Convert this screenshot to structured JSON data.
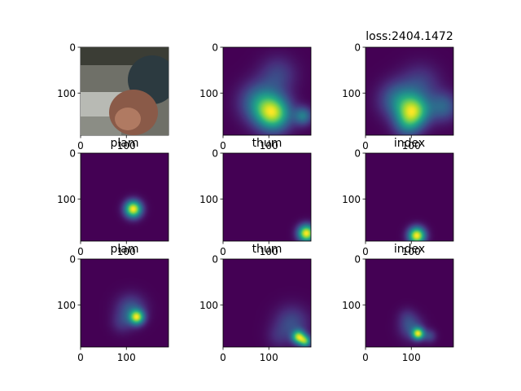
{
  "chart_data": {
    "type": "heatmap",
    "figure_title": "loss:2404.1472",
    "colormap": "viridis",
    "axis_ticks": [
      "0",
      "100"
    ],
    "x_range": [
      0,
      192
    ],
    "y_range": [
      0,
      192
    ],
    "panels": [
      {
        "id": "input-image",
        "title": "",
        "kind": "photo",
        "content": "hand photo"
      },
      {
        "id": "heatmap-total-1",
        "title": "",
        "kind": "heatmap",
        "blobs": [
          {
            "x": 110,
            "y": 145,
            "s": 26,
            "a": 1.0
          },
          {
            "x": 80,
            "y": 120,
            "s": 30,
            "a": 0.5
          },
          {
            "x": 175,
            "y": 150,
            "s": 14,
            "a": 0.5
          },
          {
            "x": 120,
            "y": 60,
            "s": 28,
            "a": 0.25
          }
        ]
      },
      {
        "id": "heatmap-total-2",
        "title": "",
        "kind": "heatmap",
        "blobs": [
          {
            "x": 105,
            "y": 140,
            "s": 24,
            "a": 1.0
          },
          {
            "x": 70,
            "y": 115,
            "s": 28,
            "a": 0.45
          },
          {
            "x": 170,
            "y": 130,
            "s": 22,
            "a": 0.4
          },
          {
            "x": 120,
            "y": 80,
            "s": 30,
            "a": 0.25
          },
          {
            "x": 90,
            "y": 170,
            "s": 20,
            "a": 0.35
          }
        ]
      },
      {
        "id": "heatmap-plam-1",
        "title": "plam",
        "kind": "heatmap",
        "blobs": [
          {
            "x": 115,
            "y": 122,
            "s": 13,
            "a": 1.0
          }
        ]
      },
      {
        "id": "heatmap-thum-1",
        "title": "thum",
        "kind": "heatmap",
        "blobs": [
          {
            "x": 182,
            "y": 175,
            "s": 13,
            "a": 1.0
          }
        ]
      },
      {
        "id": "heatmap-index-1",
        "title": "index",
        "kind": "heatmap",
        "blobs": [
          {
            "x": 112,
            "y": 180,
            "s": 13,
            "a": 1.0
          }
        ]
      },
      {
        "id": "heatmap-plam-2",
        "title": "plam",
        "kind": "heatmap",
        "blobs": [
          {
            "x": 123,
            "y": 127,
            "s": 11,
            "a": 1.0
          },
          {
            "x": 110,
            "y": 110,
            "s": 22,
            "a": 0.35
          },
          {
            "x": 90,
            "y": 140,
            "s": 16,
            "a": 0.15
          }
        ]
      },
      {
        "id": "heatmap-thum-2",
        "title": "thum",
        "kind": "heatmap",
        "blobs": [
          {
            "x": 165,
            "y": 170,
            "s": 10,
            "a": 1.0
          },
          {
            "x": 180,
            "y": 180,
            "s": 9,
            "a": 0.8
          },
          {
            "x": 150,
            "y": 140,
            "s": 26,
            "a": 0.3
          },
          {
            "x": 120,
            "y": 170,
            "s": 18,
            "a": 0.12
          }
        ]
      },
      {
        "id": "heatmap-index-2",
        "title": "index",
        "kind": "heatmap",
        "blobs": [
          {
            "x": 115,
            "y": 163,
            "s": 9,
            "a": 1.0
          },
          {
            "x": 100,
            "y": 150,
            "s": 18,
            "a": 0.3
          },
          {
            "x": 90,
            "y": 125,
            "s": 14,
            "a": 0.12
          },
          {
            "x": 140,
            "y": 168,
            "s": 10,
            "a": 0.25
          }
        ]
      }
    ]
  }
}
